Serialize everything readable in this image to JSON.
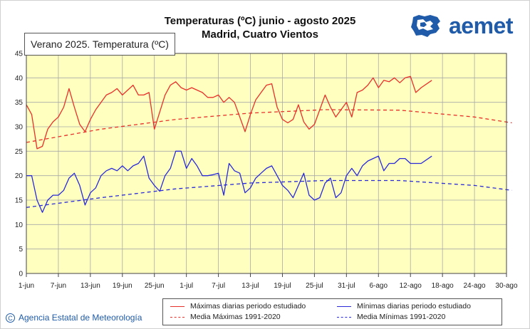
{
  "header": {
    "title_line1": "Temperaturas (ºC) junio - agosto 2025",
    "title_line2": "Madrid, Cuatro Vientos",
    "tab_label": "Verano 2025. Temperatura (ºC)"
  },
  "logo": {
    "text": "aemet",
    "icon": "aemet-iberia-logo-icon"
  },
  "footer": {
    "credit": "Agencia Estatal de Meteorología",
    "icon": "copyright-icon"
  },
  "colors": {
    "red": "#e8302a",
    "blue": "#2a2ad8",
    "plot_bg": "#ffffc0",
    "grid": "#a8a8a8"
  },
  "chart_data": {
    "type": "line",
    "title": "Temperaturas (ºC) junio - agosto 2025",
    "subtitle": "Madrid, Cuatro Vientos",
    "x_tick_labels": [
      "1-jun",
      "7-jun",
      "13-jun",
      "19-jun",
      "25-jun",
      "1-jul",
      "7-jul",
      "13-jul",
      "19-jul",
      "25-jul",
      "31-jul",
      "6-ago",
      "12-ago",
      "18-ago",
      "24-ago",
      "30-ago"
    ],
    "ylim": [
      0,
      45
    ],
    "yticks": [
      0,
      5,
      10,
      15,
      20,
      25,
      30,
      35,
      40,
      45
    ],
    "grid": true,
    "legend_position": "bottom",
    "series": [
      {
        "name": "Máximas diarias periodo estudiado",
        "style": "solid",
        "color": "#e8302a",
        "x": [
          "2025-06-01",
          "2025-06-02",
          "2025-06-03",
          "2025-06-04",
          "2025-06-05",
          "2025-06-06",
          "2025-06-07",
          "2025-06-08",
          "2025-06-09",
          "2025-06-10",
          "2025-06-11",
          "2025-06-12",
          "2025-06-13",
          "2025-06-14",
          "2025-06-15",
          "2025-06-16",
          "2025-06-17",
          "2025-06-18",
          "2025-06-19",
          "2025-06-20",
          "2025-06-21",
          "2025-06-22",
          "2025-06-23",
          "2025-06-24",
          "2025-06-25",
          "2025-06-26",
          "2025-06-27",
          "2025-06-28",
          "2025-06-29",
          "2025-06-30",
          "2025-07-01",
          "2025-07-02",
          "2025-07-03",
          "2025-07-04",
          "2025-07-05",
          "2025-07-06",
          "2025-07-07",
          "2025-07-08",
          "2025-07-09",
          "2025-07-10",
          "2025-07-11",
          "2025-07-12",
          "2025-07-13",
          "2025-07-14",
          "2025-07-15",
          "2025-07-16",
          "2025-07-17",
          "2025-07-18",
          "2025-07-19",
          "2025-07-20",
          "2025-07-21",
          "2025-07-22",
          "2025-07-23",
          "2025-07-24",
          "2025-07-25",
          "2025-07-26",
          "2025-07-27",
          "2025-07-28",
          "2025-07-29",
          "2025-07-30",
          "2025-07-31",
          "2025-08-01",
          "2025-08-02",
          "2025-08-03",
          "2025-08-04",
          "2025-08-05",
          "2025-08-06",
          "2025-08-07",
          "2025-08-08",
          "2025-08-09",
          "2025-08-10",
          "2025-08-11",
          "2025-08-12",
          "2025-08-13",
          "2025-08-14",
          "2025-08-16"
        ],
        "values": [
          34.5,
          32.5,
          25.5,
          26,
          29.5,
          31,
          32,
          34,
          37.8,
          34,
          30.5,
          29,
          31.5,
          33.5,
          35,
          36.5,
          37,
          37.8,
          36.5,
          37.5,
          38.5,
          36.5,
          36.5,
          37,
          29.5,
          33,
          36.5,
          38.5,
          39.2,
          38,
          37.5,
          38,
          37.5,
          37,
          36,
          36,
          36.5,
          35,
          36,
          35,
          32,
          29,
          32.5,
          35.5,
          37,
          38.5,
          38.8,
          34,
          31.5,
          30.8,
          31.5,
          34.5,
          31,
          29.5,
          30.5,
          33.5,
          36.5,
          34,
          32,
          33.5,
          35,
          32,
          37,
          37.5,
          38.5,
          40,
          38,
          39.5,
          39.2,
          40,
          39,
          40,
          40.3,
          37,
          38,
          39.5
        ]
      },
      {
        "name": "Media Máximas 1991-2020",
        "style": "dashed",
        "color": "#e8302a",
        "x": [
          "2025-06-01",
          "2025-06-15",
          "2025-06-29",
          "2025-07-13",
          "2025-07-27",
          "2025-08-10",
          "2025-08-24",
          "2025-08-31"
        ],
        "values": [
          26.8,
          29.5,
          31.5,
          32.8,
          33.5,
          33.4,
          32.0,
          30.8
        ]
      },
      {
        "name": "Mínimas diarias periodo estudiado",
        "style": "solid",
        "color": "#2a2ad8",
        "x": [
          "2025-06-01",
          "2025-06-02",
          "2025-06-03",
          "2025-06-04",
          "2025-06-05",
          "2025-06-06",
          "2025-06-07",
          "2025-06-08",
          "2025-06-09",
          "2025-06-10",
          "2025-06-11",
          "2025-06-12",
          "2025-06-13",
          "2025-06-14",
          "2025-06-15",
          "2025-06-16",
          "2025-06-17",
          "2025-06-18",
          "2025-06-19",
          "2025-06-20",
          "2025-06-21",
          "2025-06-22",
          "2025-06-23",
          "2025-06-24",
          "2025-06-25",
          "2025-06-26",
          "2025-06-27",
          "2025-06-28",
          "2025-06-29",
          "2025-06-30",
          "2025-07-01",
          "2025-07-02",
          "2025-07-03",
          "2025-07-04",
          "2025-07-05",
          "2025-07-06",
          "2025-07-07",
          "2025-07-08",
          "2025-07-09",
          "2025-07-10",
          "2025-07-11",
          "2025-07-12",
          "2025-07-13",
          "2025-07-14",
          "2025-07-15",
          "2025-07-16",
          "2025-07-17",
          "2025-07-18",
          "2025-07-19",
          "2025-07-20",
          "2025-07-21",
          "2025-07-22",
          "2025-07-23",
          "2025-07-24",
          "2025-07-25",
          "2025-07-26",
          "2025-07-27",
          "2025-07-28",
          "2025-07-29",
          "2025-07-30",
          "2025-07-31",
          "2025-08-01",
          "2025-08-02",
          "2025-08-03",
          "2025-08-04",
          "2025-08-05",
          "2025-08-06",
          "2025-08-07",
          "2025-08-08",
          "2025-08-09",
          "2025-08-10",
          "2025-08-11",
          "2025-08-12",
          "2025-08-13",
          "2025-08-14",
          "2025-08-16"
        ],
        "values": [
          20,
          20,
          15,
          12.5,
          15,
          16,
          16,
          17,
          19.5,
          20.5,
          18,
          14,
          16.5,
          17.5,
          20,
          21,
          21.5,
          21,
          22,
          21,
          22,
          22.5,
          24,
          19.5,
          18,
          16.8,
          20,
          21.5,
          25,
          25,
          21.5,
          23.5,
          22,
          20,
          20,
          20.2,
          20.5,
          16,
          22.5,
          21,
          20.5,
          16.5,
          17.5,
          19.5,
          20.5,
          21.5,
          22,
          20,
          18,
          17,
          15.5,
          18,
          20.5,
          16,
          15,
          15.5,
          18.5,
          19.5,
          15.5,
          16.5,
          20,
          21.5,
          20,
          22,
          23,
          23.5,
          24,
          21,
          22.5,
          22.5,
          23.5,
          23.5,
          22.5,
          22.5,
          22.5,
          24
        ]
      },
      {
        "name": "Media Mínimas 1991-2020",
        "style": "dashed",
        "color": "#2a2ad8",
        "x": [
          "2025-06-01",
          "2025-06-15",
          "2025-06-29",
          "2025-07-13",
          "2025-07-27",
          "2025-08-10",
          "2025-08-24",
          "2025-08-31"
        ],
        "values": [
          13.5,
          15.5,
          17.3,
          18.5,
          19.0,
          19.0,
          18.0,
          17.0
        ]
      }
    ]
  }
}
